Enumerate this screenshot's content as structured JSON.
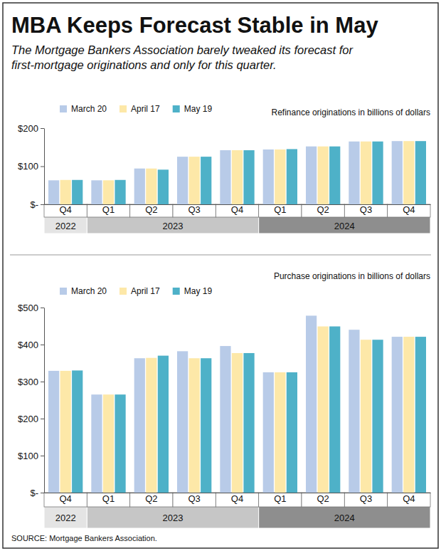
{
  "chart_data": [
    {
      "type": "bar",
      "title": "MBA Keeps Forecast Stable in May",
      "subtitle": [
        "The Mortgage Bankers Association barely tweaked its forecast for",
        "first-mortgage originations and only for this quarter."
      ],
      "y_label": "Refinance originations in billions of dollars",
      "categories": [
        "Q4",
        "Q1",
        "Q2",
        "Q3",
        "Q4",
        "Q1",
        "Q2",
        "Q3",
        "Q4"
      ],
      "x_groups": [
        {
          "label": "2022",
          "count": 1
        },
        {
          "label": "2023",
          "count": 4
        },
        {
          "label": "2024",
          "count": 4
        }
      ],
      "series": [
        {
          "name": "March 20",
          "color": "#b8cbe8",
          "values": [
            63,
            63,
            94,
            125,
            142,
            144,
            152,
            165,
            166
          ]
        },
        {
          "name": "April 17",
          "color": "#fde8a8",
          "values": [
            64,
            63,
            94,
            125,
            142,
            144,
            152,
            165,
            166
          ]
        },
        {
          "name": "May 19",
          "color": "#4eb1c8",
          "values": [
            64,
            64,
            91,
            125,
            142,
            145,
            152,
            165,
            166
          ]
        }
      ],
      "ylim": [
        0,
        200
      ],
      "yticks": [
        {
          "value": 0,
          "label": "$-"
        },
        {
          "value": 100,
          "label": "$100"
        },
        {
          "value": 200,
          "label": "$200"
        }
      ],
      "grid": false,
      "legend": "top"
    },
    {
      "type": "bar",
      "y_label": "Purchase originations in billions of dollars",
      "source": "SOURCE: Mortgage Bankers Association.",
      "categories": [
        "Q4",
        "Q1",
        "Q2",
        "Q3",
        "Q4",
        "Q1",
        "Q2",
        "Q3",
        "Q4"
      ],
      "x_groups": [
        {
          "label": "2022",
          "count": 1
        },
        {
          "label": "2023",
          "count": 4
        },
        {
          "label": "2024",
          "count": 4
        }
      ],
      "series": [
        {
          "name": "March 20",
          "color": "#b8cbe8",
          "values": [
            329,
            265,
            363,
            382,
            396,
            325,
            478,
            440,
            421
          ]
        },
        {
          "name": "April 17",
          "color": "#fde8a8",
          "values": [
            329,
            265,
            364,
            363,
            377,
            325,
            449,
            413,
            421
          ]
        },
        {
          "name": "May 19",
          "color": "#4eb1c8",
          "values": [
            330,
            265,
            370,
            363,
            377,
            325,
            449,
            413,
            421
          ]
        }
      ],
      "ylim": [
        0,
        500
      ],
      "yticks": [
        {
          "value": 0,
          "label": "$-"
        },
        {
          "value": 100,
          "label": "$100"
        },
        {
          "value": 200,
          "label": "$200"
        },
        {
          "value": 300,
          "label": "$300"
        },
        {
          "value": 400,
          "label": "$400"
        },
        {
          "value": 500,
          "label": "$500"
        }
      ],
      "grid": false,
      "legend": "top"
    }
  ]
}
